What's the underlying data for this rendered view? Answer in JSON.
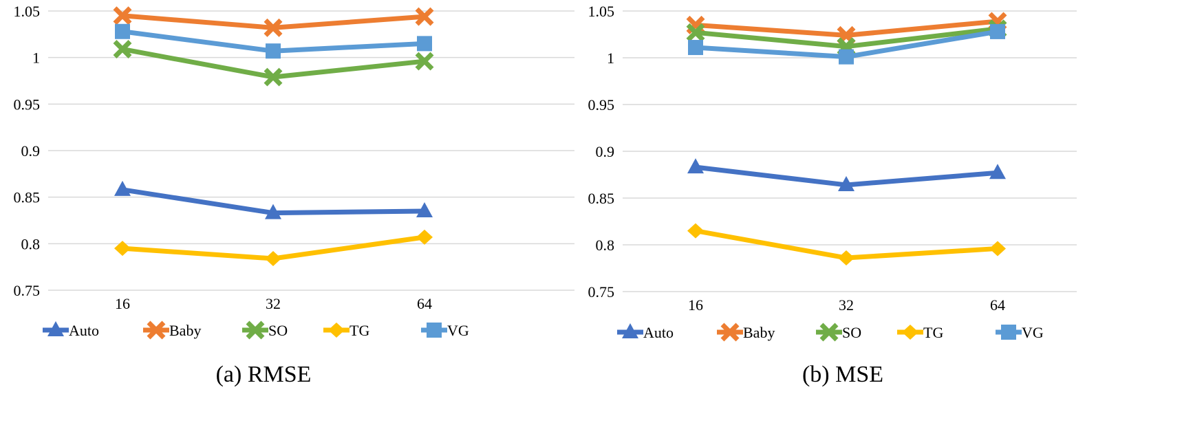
{
  "chart_data": [
    {
      "type": "line",
      "title": "",
      "caption": "(a) RMSE",
      "xlabel": "",
      "ylabel": "",
      "categories": [
        "16",
        "32",
        "64"
      ],
      "ylim": [
        0.75,
        1.05
      ],
      "yticks": [
        "0.75",
        "0.8",
        "0.85",
        "0.9",
        "0.95",
        "1",
        "1.05"
      ],
      "ytick_values": [
        0.75,
        0.8,
        0.85,
        0.9,
        0.95,
        1.0,
        1.05
      ],
      "series": [
        {
          "name": "Auto",
          "values": [
            0.858,
            0.833,
            0.835
          ],
          "color": "#4472C4",
          "marker": "triangle"
        },
        {
          "name": "Baby",
          "values": [
            1.045,
            1.032,
            1.044
          ],
          "color": "#ED7D31",
          "marker": "x"
        },
        {
          "name": "SO",
          "values": [
            1.009,
            0.979,
            0.996
          ],
          "color": "#70AD47",
          "marker": "x"
        },
        {
          "name": "TG",
          "values": [
            0.795,
            0.784,
            0.807
          ],
          "color": "#FFC000",
          "marker": "diamond"
        },
        {
          "name": "VG",
          "values": [
            1.028,
            1.007,
            1.015
          ],
          "color": "#5B9BD5",
          "marker": "square"
        }
      ],
      "grid": true,
      "legend": "bottom"
    },
    {
      "type": "line",
      "title": "",
      "caption": "(b) MSE",
      "xlabel": "",
      "ylabel": "",
      "categories": [
        "16",
        "32",
        "64"
      ],
      "ylim": [
        0.75,
        1.05
      ],
      "yticks": [
        "0.75",
        "0.8",
        "0.85",
        "0.9",
        "0.95",
        "1",
        "1.05"
      ],
      "ytick_values": [
        0.75,
        0.8,
        0.85,
        0.9,
        0.95,
        1.0,
        1.05
      ],
      "series": [
        {
          "name": "Auto",
          "values": [
            0.883,
            0.864,
            0.877
          ],
          "color": "#4472C4",
          "marker": "triangle"
        },
        {
          "name": "Baby",
          "values": [
            1.035,
            1.024,
            1.039
          ],
          "color": "#ED7D31",
          "marker": "x"
        },
        {
          "name": "SO",
          "values": [
            1.027,
            1.012,
            1.031
          ],
          "color": "#70AD47",
          "marker": "x"
        },
        {
          "name": "TG",
          "values": [
            0.815,
            0.786,
            0.796
          ],
          "color": "#FFC000",
          "marker": "diamond"
        },
        {
          "name": "VG",
          "values": [
            1.011,
            1.001,
            1.028
          ],
          "color": "#5B9BD5",
          "marker": "square"
        }
      ],
      "grid": true,
      "legend": "bottom"
    }
  ]
}
